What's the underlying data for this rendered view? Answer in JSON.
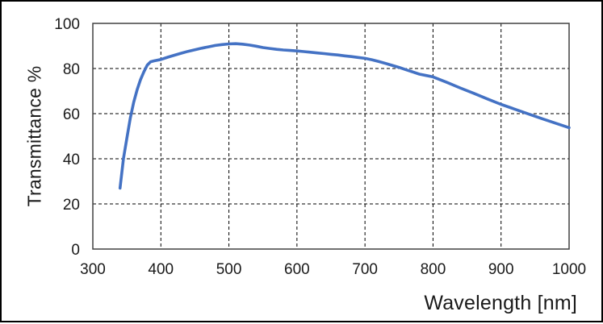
{
  "chart_data": {
    "type": "line",
    "title": "",
    "xlabel": "Wavelength [nm]",
    "ylabel": "Transmittance %",
    "xlim": [
      300,
      1000
    ],
    "ylim": [
      0,
      100
    ],
    "x_ticks": [
      300,
      400,
      500,
      600,
      700,
      800,
      900,
      1000
    ],
    "y_ticks": [
      0,
      20,
      40,
      60,
      80,
      100
    ],
    "grid": "dashed black, both axes",
    "legend_position": "none",
    "series": [
      {
        "name": "Transmittance",
        "color": "#4472C4",
        "x": [
          340,
          345,
          350,
          355,
          360,
          365,
          370,
          375,
          380,
          385,
          390,
          400,
          410,
          420,
          430,
          440,
          450,
          460,
          470,
          480,
          490,
          500,
          510,
          520,
          530,
          540,
          550,
          560,
          570,
          580,
          590,
          600,
          610,
          620,
          630,
          640,
          650,
          660,
          670,
          680,
          690,
          700,
          710,
          720,
          730,
          740,
          750,
          760,
          770,
          780,
          790,
          800,
          820,
          840,
          860,
          880,
          900,
          920,
          940,
          960,
          980,
          1000
        ],
        "y": [
          27,
          40,
          49,
          58,
          65,
          70.5,
          75,
          78.5,
          81.5,
          83,
          83.4,
          84,
          85,
          85.9,
          86.8,
          87.6,
          88.3,
          89,
          89.6,
          90.2,
          90.6,
          90.9,
          91,
          90.8,
          90.4,
          89.9,
          89.3,
          88.9,
          88.5,
          88.2,
          88,
          87.8,
          87.5,
          87.2,
          86.9,
          86.6,
          86.3,
          86,
          85.6,
          85.3,
          84.9,
          84.5,
          83.9,
          83.1,
          82.3,
          81.4,
          80.5,
          79.5,
          78.5,
          77.5,
          76.9,
          76.3,
          73.9,
          71.4,
          69,
          66.5,
          64.1,
          62,
          59.9,
          57.8,
          55.8,
          53.8
        ]
      }
    ]
  },
  "colors": {
    "line": "#4472C4",
    "gridline": "#000000",
    "plot_border": "#404040",
    "outer_border": "#000000",
    "text": "#1a1a1a",
    "background": "#ffffff"
  }
}
